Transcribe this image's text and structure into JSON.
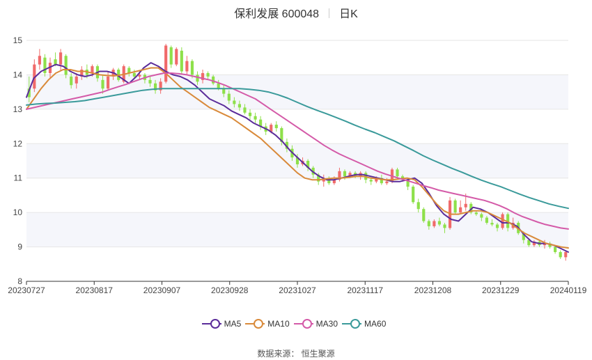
{
  "title": {
    "main": "保利发展 600048",
    "period": "日K"
  },
  "source": "数据来源： 恒生聚源",
  "colors": {
    "up": "#f06a6a",
    "down": "#8ee04a",
    "ma5": "#5b2c9a",
    "ma10": "#d98a3a",
    "ma30": "#d45aa8",
    "ma60": "#3a9a9a",
    "grid": "#e6e6e6",
    "band": "#f5f6fb"
  },
  "chart_data": {
    "type": "candlestick",
    "x_ticks": [
      "20230727",
      "20230817",
      "20230907",
      "20230928",
      "20231027",
      "20231117",
      "20231208",
      "20231229",
      "20240119"
    ],
    "y_ticks": [
      8,
      9,
      10,
      11,
      12,
      13,
      14,
      15
    ],
    "ylim": [
      8,
      15
    ],
    "grid": true,
    "legend_position": "bottom",
    "series": [
      {
        "name": "MA5",
        "color_key": "ma5",
        "values": [
          13.35,
          13.9,
          14.1,
          14.2,
          14.3,
          14.25,
          14.1,
          14.0,
          13.95,
          14.0,
          14.1,
          14.1,
          14.05,
          13.9,
          13.75,
          13.95,
          14.2,
          14.35,
          14.25,
          14.1,
          14.0,
          13.95,
          13.85,
          13.7,
          13.5,
          13.3,
          13.2,
          13.1,
          12.95,
          12.85,
          12.75,
          12.6,
          12.5,
          12.4,
          12.25,
          12.05,
          11.8,
          11.6,
          11.4,
          11.2,
          11.05,
          10.95,
          10.95,
          11.0,
          11.05,
          11.1,
          11.1,
          11.05,
          11.0,
          10.95,
          10.9,
          10.9,
          10.95,
          11.0,
          10.85,
          10.55,
          10.2,
          9.95,
          9.8,
          9.75,
          9.95,
          10.15,
          10.1,
          10.0,
          9.85,
          9.7,
          9.7,
          9.6,
          9.35,
          9.15,
          9.1,
          9.1,
          9.05,
          8.95,
          8.85
        ]
      },
      {
        "name": "MA10",
        "color_key": "ma10",
        "values": [
          13.0,
          13.3,
          13.6,
          13.85,
          14.05,
          14.15,
          14.15,
          14.1,
          14.1,
          14.05,
          14.0,
          13.98,
          13.97,
          14.0,
          14.05,
          14.1,
          14.15,
          14.2,
          14.2,
          14.05,
          13.85,
          13.65,
          13.5,
          13.35,
          13.2,
          13.05,
          12.95,
          12.85,
          12.75,
          12.6,
          12.45,
          12.3,
          12.15,
          11.95,
          11.75,
          11.55,
          11.35,
          11.15,
          11.0,
          10.95,
          10.95,
          10.98,
          11.0,
          11.0,
          11.02,
          11.05,
          11.05,
          11.0,
          10.98,
          10.95,
          10.95,
          10.98,
          11.0,
          10.95,
          10.75,
          10.5,
          10.25,
          10.05,
          9.95,
          9.95,
          10.0,
          10.05,
          10.05,
          10.0,
          9.9,
          9.8,
          9.7,
          9.55,
          9.4,
          9.3,
          9.2,
          9.1,
          9.05,
          9.0,
          8.97
        ]
      },
      {
        "name": "MA30",
        "color_key": "ma30",
        "values": [
          13.0,
          13.05,
          13.1,
          13.15,
          13.2,
          13.25,
          13.3,
          13.35,
          13.4,
          13.45,
          13.5,
          13.58,
          13.65,
          13.72,
          13.8,
          13.88,
          13.95,
          14.0,
          14.05,
          14.05,
          14.03,
          14.0,
          13.95,
          13.9,
          13.85,
          13.78,
          13.7,
          13.6,
          13.5,
          13.4,
          13.3,
          13.15,
          13.0,
          12.85,
          12.7,
          12.55,
          12.4,
          12.25,
          12.1,
          11.95,
          11.82,
          11.7,
          11.6,
          11.5,
          11.4,
          11.3,
          11.2,
          11.12,
          11.05,
          10.98,
          10.92,
          10.85,
          10.78,
          10.72,
          10.65,
          10.6,
          10.55,
          10.5,
          10.45,
          10.4,
          10.35,
          10.28,
          10.2,
          10.1,
          9.98,
          9.88,
          9.8,
          9.72,
          9.65,
          9.6,
          9.55,
          9.52
        ]
      },
      {
        "name": "MA60",
        "color_key": "ma60",
        "values": [
          13.12,
          13.15,
          13.17,
          13.18,
          13.2,
          13.22,
          13.25,
          13.3,
          13.35,
          13.4,
          13.45,
          13.5,
          13.55,
          13.58,
          13.6,
          13.6,
          13.6,
          13.6,
          13.6,
          13.6,
          13.6,
          13.6,
          13.6,
          13.58,
          13.55,
          13.5,
          13.42,
          13.32,
          13.2,
          13.08,
          12.97,
          12.87,
          12.76,
          12.65,
          12.53,
          12.42,
          12.32,
          12.2,
          12.08,
          11.94,
          11.8,
          11.65,
          11.52,
          11.4,
          11.28,
          11.17,
          11.05,
          10.94,
          10.84,
          10.75,
          10.64,
          10.53,
          10.43,
          10.34,
          10.25,
          10.18,
          10.12
        ]
      }
    ],
    "candles": [
      [
        13.6,
        13.35,
        13.95,
        13.2
      ],
      [
        13.6,
        14.3,
        14.45,
        13.5
      ],
      [
        14.3,
        14.55,
        14.75,
        14.15
      ],
      [
        14.5,
        14.05,
        14.6,
        13.95
      ],
      [
        14.05,
        14.35,
        14.5,
        13.9
      ],
      [
        14.45,
        14.3,
        14.65,
        14.25
      ],
      [
        14.3,
        14.65,
        14.75,
        14.1
      ],
      [
        14.55,
        14.0,
        14.6,
        13.9
      ],
      [
        13.95,
        13.7,
        14.05,
        13.6
      ],
      [
        13.75,
        13.95,
        14.05,
        13.6
      ],
      [
        13.95,
        14.15,
        14.25,
        13.85
      ],
      [
        14.15,
        14.0,
        14.3,
        13.9
      ],
      [
        14.05,
        14.25,
        14.3,
        13.95
      ],
      [
        14.25,
        13.9,
        14.3,
        13.8
      ],
      [
        13.85,
        13.6,
        14.0,
        13.45
      ],
      [
        13.6,
        13.95,
        14.1,
        13.55
      ],
      [
        13.95,
        14.15,
        14.2,
        13.85
      ],
      [
        14.15,
        13.85,
        14.2,
        13.8
      ],
      [
        13.8,
        14.25,
        14.3,
        13.75
      ],
      [
        14.2,
        14.05,
        14.25,
        13.95
      ],
      [
        14.05,
        13.95,
        14.15,
        13.9
      ],
      [
        13.95,
        14.0,
        14.1,
        13.85
      ],
      [
        14.0,
        13.85,
        14.05,
        13.75
      ],
      [
        13.85,
        13.75,
        13.95,
        13.65
      ],
      [
        13.75,
        13.55,
        13.85,
        13.45
      ],
      [
        13.55,
        13.8,
        13.9,
        13.45
      ],
      [
        13.8,
        14.85,
        14.9,
        13.75
      ],
      [
        14.8,
        14.3,
        14.85,
        14.2
      ],
      [
        14.3,
        14.75,
        14.8,
        14.25
      ],
      [
        14.7,
        14.1,
        14.8,
        14.0
      ],
      [
        14.1,
        14.4,
        14.55,
        14.0
      ],
      [
        14.4,
        14.0,
        14.45,
        13.9
      ],
      [
        14.0,
        13.8,
        14.1,
        13.7
      ],
      [
        13.85,
        14.05,
        14.15,
        13.75
      ],
      [
        14.05,
        13.95,
        14.1,
        13.85
      ],
      [
        13.95,
        13.75,
        14.0,
        13.7
      ],
      [
        13.75,
        13.6,
        13.85,
        13.55
      ],
      [
        13.6,
        13.45,
        13.7,
        13.35
      ],
      [
        13.45,
        13.25,
        13.55,
        13.15
      ],
      [
        13.25,
        13.15,
        13.35,
        13.05
      ],
      [
        13.15,
        13.05,
        13.25,
        12.95
      ],
      [
        13.05,
        12.9,
        13.15,
        12.85
      ],
      [
        12.9,
        12.8,
        13.0,
        12.7
      ],
      [
        12.8,
        12.7,
        12.9,
        12.6
      ],
      [
        12.7,
        12.5,
        12.8,
        12.4
      ],
      [
        12.5,
        12.35,
        12.6,
        12.25
      ],
      [
        12.35,
        12.55,
        12.6,
        12.3
      ],
      [
        12.55,
        12.45,
        12.65,
        12.35
      ],
      [
        12.45,
        12.05,
        12.5,
        11.95
      ],
      [
        12.05,
        11.85,
        12.15,
        11.75
      ],
      [
        11.85,
        11.6,
        11.95,
        11.5
      ],
      [
        11.6,
        11.4,
        11.7,
        11.3
      ],
      [
        11.4,
        11.5,
        11.6,
        11.35
      ],
      [
        11.5,
        11.3,
        11.55,
        11.2
      ],
      [
        11.3,
        11.1,
        11.35,
        11.0
      ],
      [
        11.1,
        10.9,
        11.15,
        10.8
      ],
      [
        10.9,
        11.0,
        11.1,
        10.75
      ],
      [
        11.0,
        10.85,
        11.05,
        10.8
      ],
      [
        10.85,
        10.95,
        11.05,
        10.8
      ],
      [
        10.95,
        11.2,
        11.3,
        10.9
      ],
      [
        11.2,
        11.05,
        11.25,
        10.95
      ],
      [
        11.05,
        11.15,
        11.2,
        11.0
      ],
      [
        11.15,
        11.05,
        11.2,
        11.0
      ],
      [
        11.05,
        11.15,
        11.2,
        10.95
      ],
      [
        11.15,
        10.95,
        11.2,
        10.85
      ],
      [
        10.95,
        10.9,
        11.05,
        10.8
      ],
      [
        10.9,
        11.0,
        11.05,
        10.85
      ],
      [
        11.0,
        10.85,
        11.1,
        10.8
      ],
      [
        10.85,
        10.9,
        11.0,
        10.8
      ],
      [
        10.9,
        11.25,
        11.3,
        10.85
      ],
      [
        11.25,
        11.05,
        11.3,
        10.95
      ],
      [
        11.05,
        10.95,
        11.1,
        10.9
      ],
      [
        10.95,
        10.75,
        11.0,
        10.65
      ],
      [
        10.75,
        10.3,
        10.8,
        10.25
      ],
      [
        10.3,
        10.1,
        10.4,
        10.0
      ],
      [
        10.1,
        9.75,
        10.15,
        9.7
      ],
      [
        9.75,
        9.6,
        9.8,
        9.5
      ],
      [
        9.6,
        9.75,
        9.8,
        9.55
      ],
      [
        9.75,
        9.65,
        9.85,
        9.6
      ],
      [
        9.65,
        9.55,
        9.7,
        9.4
      ],
      [
        9.55,
        10.35,
        10.45,
        9.5
      ],
      [
        10.35,
        10.0,
        10.4,
        9.95
      ],
      [
        10.0,
        10.15,
        10.35,
        9.95
      ],
      [
        10.15,
        10.25,
        10.55,
        10.05
      ],
      [
        10.25,
        10.0,
        10.3,
        9.95
      ],
      [
        10.0,
        9.95,
        10.05,
        9.9
      ],
      [
        9.95,
        9.85,
        10.0,
        9.75
      ],
      [
        9.85,
        9.7,
        9.9,
        9.65
      ],
      [
        9.7,
        9.65,
        9.8,
        9.6
      ],
      [
        9.65,
        9.55,
        9.7,
        9.45
      ],
      [
        9.55,
        9.95,
        10.0,
        9.5
      ],
      [
        9.95,
        9.55,
        10.0,
        9.45
      ],
      [
        9.55,
        9.7,
        9.85,
        9.5
      ],
      [
        9.7,
        9.4,
        9.75,
        9.35
      ],
      [
        9.4,
        9.2,
        9.45,
        9.1
      ],
      [
        9.2,
        9.05,
        9.25,
        9.0
      ],
      [
        9.05,
        9.15,
        9.2,
        9.0
      ],
      [
        9.15,
        9.05,
        9.2,
        9.0
      ],
      [
        9.05,
        9.1,
        9.2,
        8.95
      ],
      [
        9.1,
        9.0,
        9.15,
        8.95
      ],
      [
        9.0,
        8.85,
        9.05,
        8.8
      ],
      [
        8.85,
        8.7,
        8.9,
        8.65
      ],
      [
        8.7,
        8.85,
        8.9,
        8.6
      ]
    ]
  }
}
